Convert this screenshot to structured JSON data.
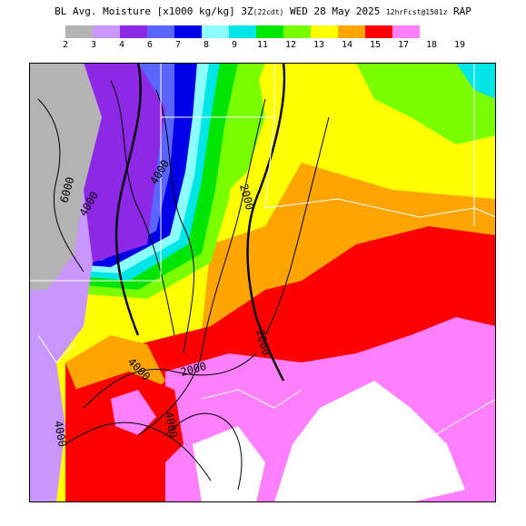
{
  "title": {
    "main": "BL Avg. Moisture [x1000 kg/kg] 3Z",
    "local": "(22cdt)",
    "date": "WED 28 May 2025",
    "fcst": "12hrFcst@1501z",
    "model": "RAP"
  },
  "legend": {
    "colors": [
      "#b4b4b4",
      "#c896ff",
      "#8c28e6",
      "#5a64ff",
      "#0000e6",
      "#8cffff",
      "#00e6e6",
      "#00e600",
      "#78ff00",
      "#ffff00",
      "#ffa500",
      "#ff0000",
      "#ff80ff"
    ],
    "labels": [
      "2",
      "3",
      "4",
      "6",
      "7",
      "8",
      "9",
      "11",
      "12",
      "13",
      "14",
      "15",
      "17",
      "18",
      "19"
    ]
  },
  "map": {
    "contour_labels": [
      "6000",
      "4000",
      "4000",
      "2000",
      "2000",
      "4000",
      "2000",
      "4000",
      "4000"
    ]
  }
}
